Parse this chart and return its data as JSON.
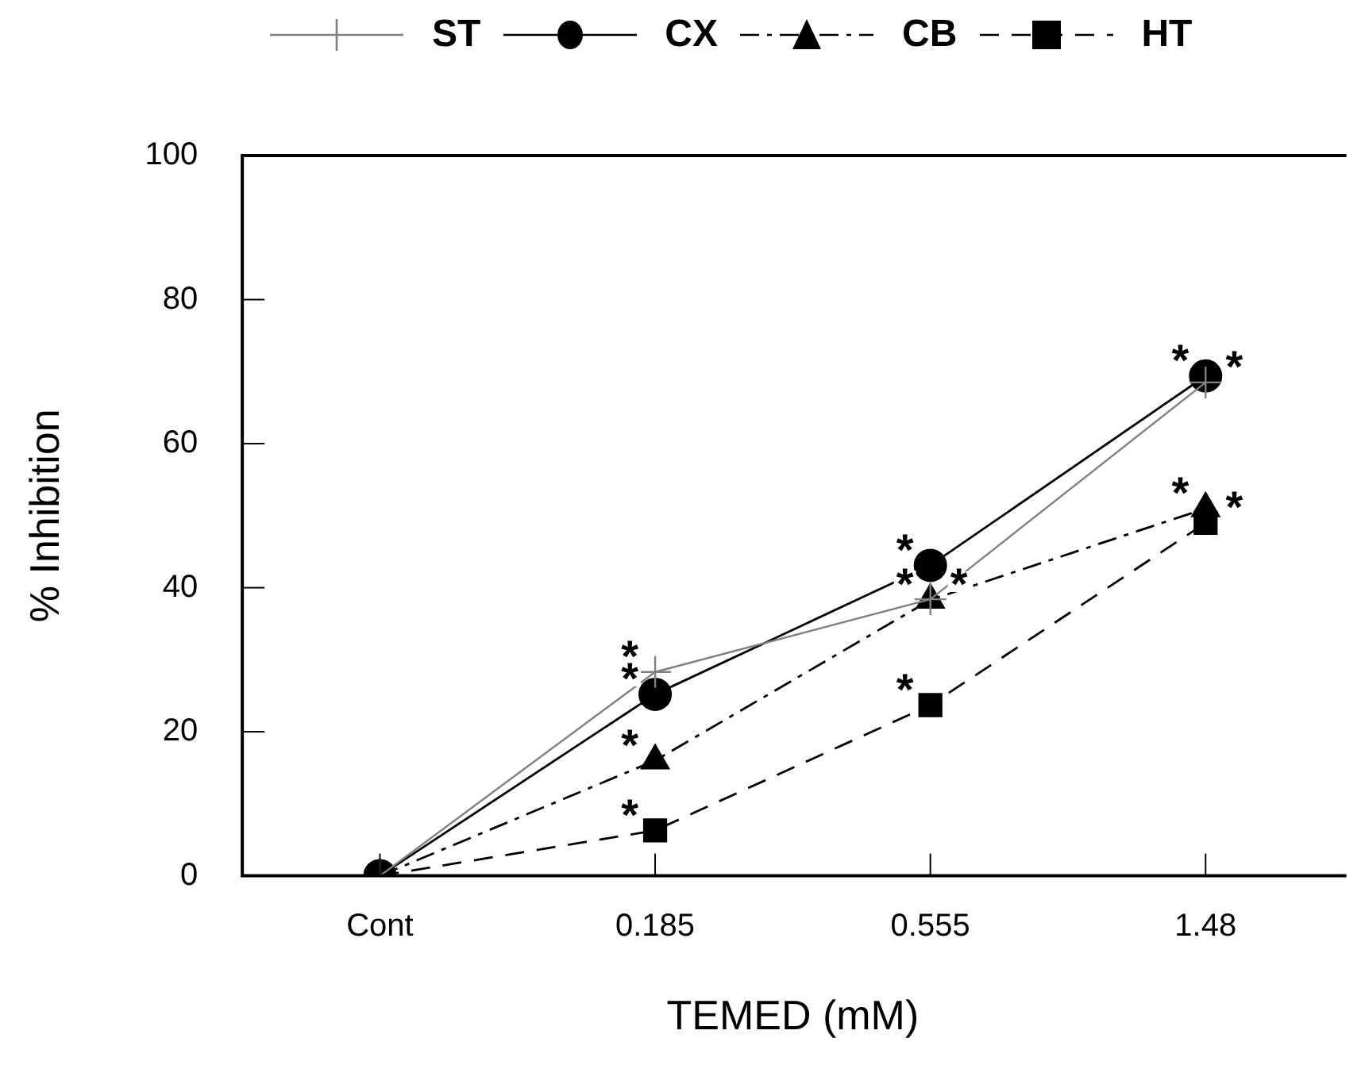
{
  "chart_data": {
    "type": "line",
    "xlabel": "TEMED (mM)",
    "ylabel": "% Inhibition",
    "categories": [
      "Cont",
      "0.185",
      "0.555",
      "1.48"
    ],
    "ylim": [
      0,
      100
    ],
    "yticks": [
      0,
      20,
      40,
      60,
      80,
      100
    ],
    "grid": false,
    "legend": "top",
    "series": [
      {
        "name": "ST",
        "color": "#808080",
        "values": [
          0,
          28.3,
          38.4,
          68.5
        ],
        "marker": "cross",
        "line_style": "solid"
      },
      {
        "name": "CX",
        "color": "#000000",
        "values": [
          0,
          25.2,
          43.1,
          69.4
        ],
        "marker": "circle",
        "line_style": "solid"
      },
      {
        "name": "CB",
        "color": "#000000",
        "values": [
          0,
          16.0,
          38.3,
          51.0
        ],
        "marker": "triangle",
        "line_style": "dashdot"
      },
      {
        "name": "HT",
        "color": "#000000",
        "values": [
          0,
          6.3,
          23.7,
          49.0
        ],
        "marker": "square",
        "line_style": "dashed"
      }
    ],
    "annotations": [
      {
        "text": "*",
        "x": "0.185",
        "y": 28.3
      },
      {
        "text": "*",
        "x": "0.185",
        "y": 25.2
      },
      {
        "text": "*",
        "x": "0.185",
        "y": 16.0
      },
      {
        "text": "*",
        "x": "0.185",
        "y": 6.3
      },
      {
        "text": "*",
        "x": "0.555",
        "y": 43.1
      },
      {
        "text": "*",
        "x": "0.555",
        "y": 38.4
      },
      {
        "text": "*",
        "x": "0.555",
        "y": 38.3
      },
      {
        "text": "*",
        "x": "0.555",
        "y": 23.7
      },
      {
        "text": "*",
        "x": "1.48",
        "y": 69.4
      },
      {
        "text": "*",
        "x": "1.48",
        "y": 68.5
      },
      {
        "text": "*",
        "x": "1.48",
        "y": 51.0
      },
      {
        "text": "*",
        "x": "1.48",
        "y": 49.0
      }
    ]
  }
}
